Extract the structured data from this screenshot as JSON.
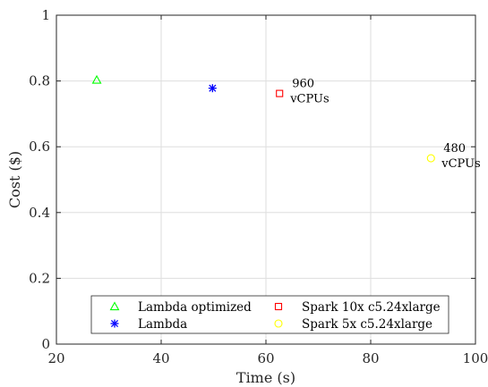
{
  "chart_data": {
    "type": "scatter",
    "title": "",
    "xlabel": "Time (s)",
    "ylabel": "Cost ($)",
    "xlim": [
      20,
      100
    ],
    "ylim": [
      0,
      1
    ],
    "xticks": [
      "20",
      "40",
      "60",
      "80",
      "100"
    ],
    "yticks": [
      "0",
      "0.2",
      "0.4",
      "0.6",
      "0.8",
      "1"
    ],
    "grid": true,
    "legend_position": "bottom-center",
    "series": [
      {
        "name": "Lambda optimized",
        "marker": "triangle",
        "color": "#00ff00",
        "points": [
          {
            "x": 27.7,
            "y": 0.803
          }
        ]
      },
      {
        "name": "Lambda",
        "marker": "asterisk",
        "color": "#0000ff",
        "points": [
          {
            "x": 49.8,
            "y": 0.778
          }
        ]
      },
      {
        "name": "Spark 10x c5.24xlarge",
        "marker": "square",
        "color": "#ff0000",
        "points": [
          {
            "x": 62.6,
            "y": 0.762
          }
        ]
      },
      {
        "name": "Spark 5x c5.24xlarge",
        "marker": "circle",
        "color": "#ffff00",
        "points": [
          {
            "x": 91.5,
            "y": 0.565
          }
        ]
      }
    ],
    "annotations": [
      {
        "series": 2,
        "line1": "960",
        "line2": "vCPUs"
      },
      {
        "series": 3,
        "line1": "480",
        "line2": "vCPUs"
      }
    ]
  }
}
